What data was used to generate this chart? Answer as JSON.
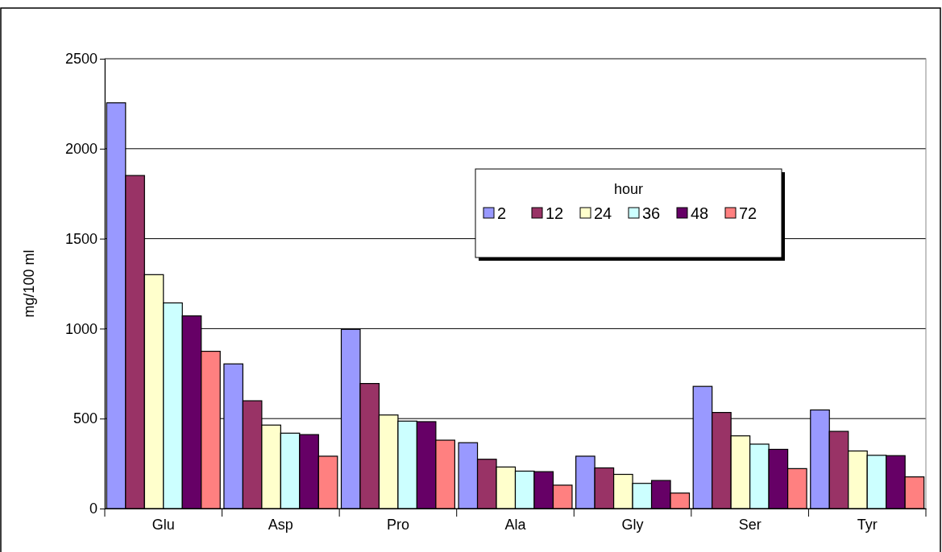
{
  "chart_data": {
    "type": "bar",
    "ylabel": "mg/100 ml",
    "legend_title": "hour",
    "categories": [
      "Glu",
      "Asp",
      "Pro",
      "Ala",
      "Gly",
      "Ser",
      "Tyr"
    ],
    "series": [
      {
        "name": "2",
        "color": "#9999ff",
        "values": [
          2255,
          804,
          996,
          366,
          291,
          679,
          548
        ]
      },
      {
        "name": "12",
        "color": "#993366",
        "values": [
          1851,
          599,
          695,
          274,
          226,
          534,
          429
        ]
      },
      {
        "name": "24",
        "color": "#ffffcc",
        "values": [
          1300,
          464,
          520,
          231,
          190,
          404,
          320
        ]
      },
      {
        "name": "36",
        "color": "#ccffff",
        "values": [
          1143,
          419,
          486,
          208,
          140,
          358,
          296
        ]
      },
      {
        "name": "48",
        "color": "#660066",
        "values": [
          1071,
          411,
          483,
          205,
          156,
          329,
          294
        ]
      },
      {
        "name": "72",
        "color": "#ff8080",
        "values": [
          874,
          291,
          380,
          130,
          86,
          222,
          176
        ]
      }
    ],
    "ylim": [
      0,
      2500
    ],
    "yticks": [
      0,
      500,
      1000,
      1500,
      2000,
      2500
    ],
    "grid": "y",
    "legend": "top right"
  }
}
